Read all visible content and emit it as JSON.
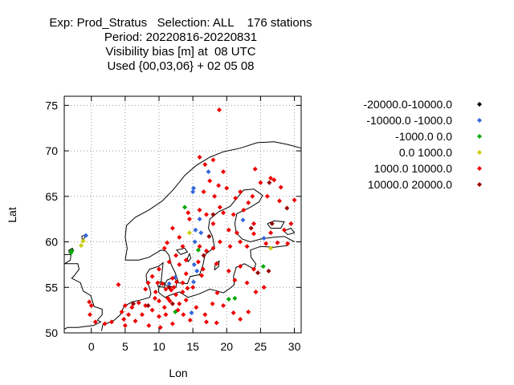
{
  "title_lines": [
    "Exp: Prod_Stratus   Selection: ALL    176 stations",
    "Period: 20220816-20220831",
    "Visibility bias [m] at  08 UTC",
    "Used {00,03,06} + 02 05 08"
  ],
  "chart_data": {
    "type": "scatter",
    "title": "Exp: Prod_Stratus   Selection: ALL    176 stations",
    "xlabel": "Lon",
    "ylabel": "Lat",
    "xlim": [
      -4,
      31
    ],
    "ylim": [
      50,
      76
    ],
    "x_ticks": [
      0,
      5,
      10,
      15,
      20,
      25,
      30
    ],
    "y_ticks": [
      50,
      55,
      60,
      65,
      70,
      75
    ],
    "grid": true,
    "legend_position": "right",
    "series": [
      {
        "name": "-20000.0-10000.0",
        "color": "#000000",
        "points": []
      },
      {
        "name": "-10000.0 -1000.0",
        "color": "#3366dd",
        "points": [
          [
            -0.8,
            60.7
          ],
          [
            15,
            65.5
          ],
          [
            15.1,
            65.9
          ],
          [
            17.3,
            67.7
          ],
          [
            16,
            62.5
          ],
          [
            15.4,
            61.3
          ],
          [
            16.2,
            61.0
          ],
          [
            15.3,
            60.0
          ],
          [
            22.4,
            62.4
          ],
          [
            25.5,
            60.4
          ],
          [
            15.2,
            57.5
          ],
          [
            15.6,
            56.8
          ],
          [
            12.4,
            56.1
          ],
          [
            11.5,
            55.4
          ],
          [
            14.8,
            52.2
          ],
          [
            15.1,
            55.6
          ]
        ]
      },
      {
        "name": "-1000.0 0.0",
        "color": "#00aa00",
        "points": [
          [
            -2.9,
            59.0
          ],
          [
            -3.0,
            58.8
          ],
          [
            13.8,
            63.8
          ],
          [
            15.8,
            59.1
          ],
          [
            25.4,
            57.3
          ],
          [
            20.3,
            53.7
          ],
          [
            21.2,
            53.8
          ],
          [
            12.4,
            52.3
          ]
        ]
      },
      {
        "name": "0.0 1000.0",
        "color": "#cccc00",
        "points": [
          [
            -1.2,
            60.1
          ],
          [
            -1.5,
            59.6
          ],
          [
            14.5,
            61.0
          ],
          [
            26.5,
            59.3
          ]
        ]
      },
      {
        "name": "1000.0 10000.0",
        "color": "#ee0000",
        "points": [
          [
            18.9,
            74.5
          ],
          [
            16.0,
            69.3
          ],
          [
            16.8,
            68.5
          ],
          [
            18.0,
            69.0
          ],
          [
            19.5,
            67.7
          ],
          [
            17.5,
            66.7
          ],
          [
            18.8,
            66.2
          ],
          [
            16.6,
            65.5
          ],
          [
            18.2,
            65.0
          ],
          [
            20.0,
            65.9
          ],
          [
            21.3,
            64.8
          ],
          [
            22.0,
            65.5
          ],
          [
            23.2,
            64.3
          ],
          [
            24.2,
            68.0
          ],
          [
            27.0,
            66.8
          ],
          [
            28.0,
            66.0
          ],
          [
            26.0,
            65.0
          ],
          [
            27.8,
            64.5
          ],
          [
            30.0,
            64.6
          ],
          [
            29.5,
            62.0
          ],
          [
            24.0,
            62.0
          ],
          [
            22.5,
            63.5
          ],
          [
            21.0,
            63.0
          ],
          [
            20.3,
            61.3
          ],
          [
            21.5,
            61.0
          ],
          [
            24.0,
            60.9
          ],
          [
            25.8,
            59.8
          ],
          [
            27.5,
            59.9
          ],
          [
            29.0,
            59.8
          ],
          [
            22.0,
            60.0
          ],
          [
            20.5,
            59.5
          ],
          [
            18.0,
            62.0
          ],
          [
            17.0,
            63.0
          ],
          [
            19.5,
            63.2
          ],
          [
            16.0,
            63.5
          ],
          [
            14.5,
            62.5
          ],
          [
            12.0,
            61.5
          ],
          [
            13.0,
            60.5
          ],
          [
            13.5,
            59.5
          ],
          [
            12.5,
            58.5
          ],
          [
            11.5,
            57.8
          ],
          [
            14.0,
            58.0
          ],
          [
            16.0,
            59.5
          ],
          [
            17.0,
            59.0
          ],
          [
            18.0,
            59.3
          ],
          [
            18.5,
            57.6
          ],
          [
            16.5,
            57.0
          ],
          [
            14.0,
            56.5
          ],
          [
            13.0,
            57.5
          ],
          [
            12.0,
            56.0
          ],
          [
            13.5,
            55.5
          ],
          [
            15.0,
            55.0
          ],
          [
            10.0,
            57.0
          ],
          [
            9.0,
            56.2
          ],
          [
            8.4,
            55.5
          ],
          [
            10.5,
            55.4
          ],
          [
            11.0,
            54.8
          ],
          [
            9.5,
            54.5
          ],
          [
            8.0,
            54.8
          ],
          [
            10.0,
            53.5
          ],
          [
            11.3,
            53.8
          ],
          [
            12.5,
            54.2
          ],
          [
            13.5,
            54.5
          ],
          [
            14.0,
            53.6
          ],
          [
            12.8,
            52.5
          ],
          [
            13.6,
            52.0
          ],
          [
            11.0,
            52.0
          ],
          [
            10.0,
            51.8
          ],
          [
            9.0,
            52.5
          ],
          [
            8.0,
            53.0
          ],
          [
            7.0,
            53.3
          ],
          [
            6.0,
            52.8
          ],
          [
            5.5,
            52.0
          ],
          [
            4.8,
            51.5
          ],
          [
            4.5,
            52.3
          ],
          [
            3.0,
            51.2
          ],
          [
            2.0,
            51.0
          ],
          [
            0.6,
            51.2
          ],
          [
            -0.2,
            52.0
          ],
          [
            0.0,
            53.0
          ],
          [
            -0.3,
            53.4
          ],
          [
            4.0,
            55.3
          ],
          [
            5.0,
            53.0
          ],
          [
            6.5,
            51.3
          ],
          [
            8.5,
            50.8
          ],
          [
            10.2,
            50.6
          ],
          [
            12.0,
            51.0
          ],
          [
            14.6,
            51.4
          ],
          [
            15.5,
            52.8
          ],
          [
            16.8,
            52.0
          ],
          [
            17.9,
            53.2
          ],
          [
            18.6,
            54.4
          ],
          [
            19.5,
            53.0
          ],
          [
            21.0,
            52.2
          ],
          [
            22.0,
            51.5
          ],
          [
            23.2,
            52.3
          ],
          [
            24.3,
            54.5
          ],
          [
            25.5,
            55.0
          ],
          [
            23.0,
            55.5
          ],
          [
            21.2,
            55.8
          ],
          [
            18.5,
            51.1
          ],
          [
            17.0,
            51.2
          ],
          [
            13.0,
            53.2
          ],
          [
            11.6,
            53.5
          ],
          [
            10.8,
            52.8
          ],
          [
            9.4,
            53.8
          ],
          [
            7.5,
            52.0
          ],
          [
            5.0,
            50.8
          ],
          [
            20.3,
            56.8
          ],
          [
            22.0,
            57.3
          ],
          [
            24.0,
            57.0
          ],
          [
            19.0,
            60.0
          ],
          [
            23.0,
            59.5
          ],
          [
            26.5,
            61.0
          ],
          [
            28.5,
            61.3
          ],
          [
            25.0,
            66.5
          ],
          [
            26.5,
            67.0
          ],
          [
            23.8,
            65.0
          ],
          [
            19.0,
            63.8
          ],
          [
            14.3,
            63.2
          ],
          [
            10.8,
            59.3
          ],
          [
            11.2,
            59.9
          ],
          [
            15.8,
            57.8
          ],
          [
            16.3,
            56.3
          ],
          [
            12.6,
            55.6
          ],
          [
            9.8,
            55.5
          ],
          [
            11.8,
            54.7
          ],
          [
            12.2,
            55.0
          ],
          [
            14.2,
            54.9
          ]
        ]
      },
      {
        "name": "10000.0 20000.0",
        "color": "#990000",
        "points": [
          [
            26.3,
            66.5
          ],
          [
            28.9,
            63.7
          ],
          [
            23.6,
            61.5
          ],
          [
            18.0,
            63.0
          ],
          [
            26.7,
            62.0
          ],
          [
            26.2,
            56.8
          ],
          [
            24.6,
            56.6
          ],
          [
            17.4,
            60.6
          ],
          [
            16.6,
            58.5
          ],
          [
            11.5,
            55.0
          ],
          [
            12.0,
            53.2
          ],
          [
            8.4,
            53.0
          ],
          [
            6.2,
            53.2
          ]
        ]
      }
    ]
  }
}
